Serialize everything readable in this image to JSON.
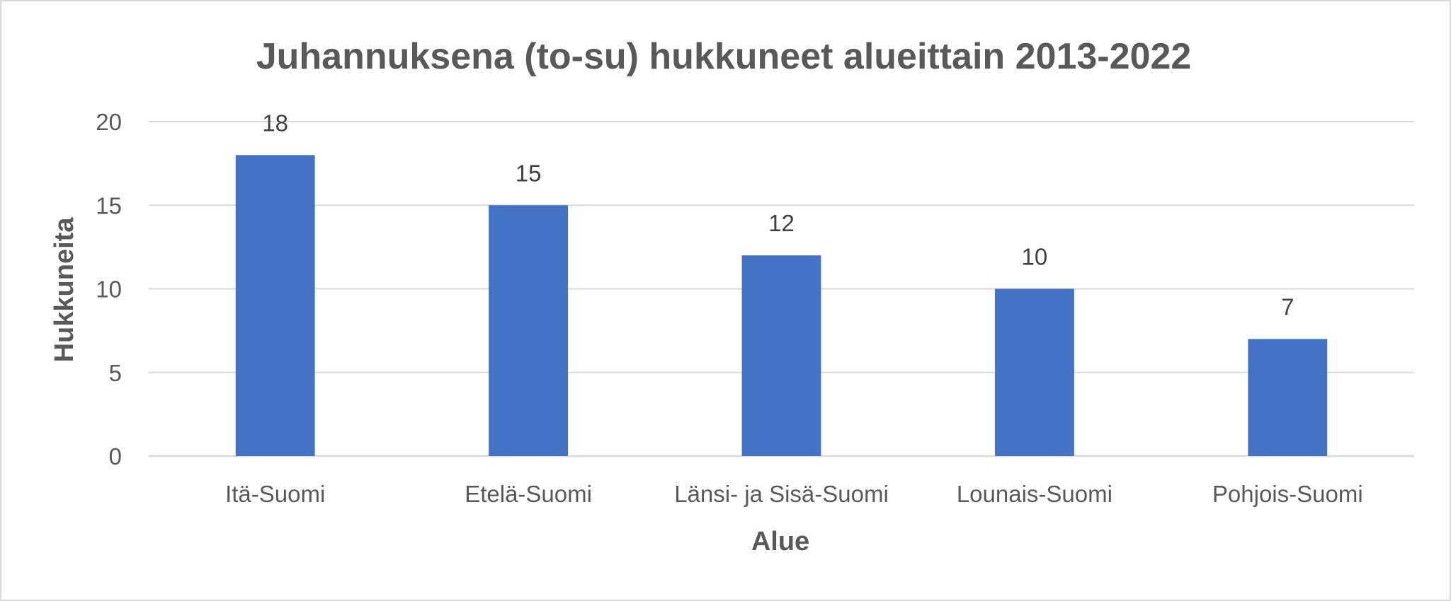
{
  "chart_data": {
    "type": "bar",
    "title": "Juhannuksena (to-su) hukkuneet alueittain 2013-2022",
    "xlabel": "Alue",
    "ylabel": "Hukkuneita",
    "categories": [
      "Itä-Suomi",
      "Etelä-Suomi",
      "Länsi- ja Sisä-Suomi",
      "Lounais-Suomi",
      "Pohjois-Suomi"
    ],
    "values": [
      18,
      15,
      12,
      10,
      7
    ],
    "ylim": [
      0,
      20
    ],
    "yticks": [
      "0",
      "5",
      "10",
      "15",
      "20"
    ],
    "data_labels": [
      "18",
      "15",
      "12",
      "10",
      "7"
    ],
    "bar_color": "#4472C4",
    "grid": true,
    "legend": "none"
  }
}
